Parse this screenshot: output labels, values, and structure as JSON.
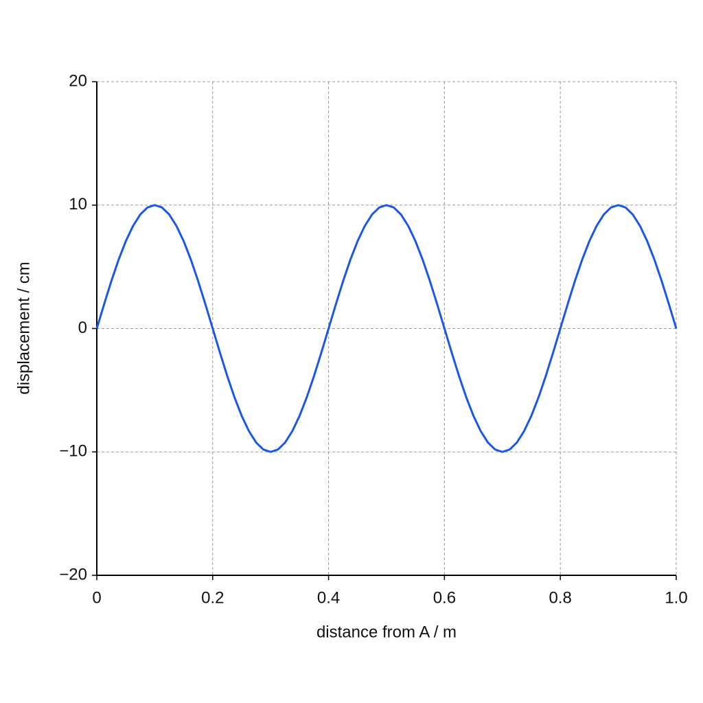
{
  "chart_data": {
    "type": "line",
    "xlabel": "distance from A / m",
    "ylabel": "displacement / cm",
    "x": [
      0,
      0.0125,
      0.025,
      0.0375,
      0.05,
      0.0625,
      0.075,
      0.0875,
      0.1,
      0.1125,
      0.125,
      0.1375,
      0.15,
      0.1625,
      0.175,
      0.1875,
      0.2,
      0.2125,
      0.225,
      0.2375,
      0.25,
      0.2625,
      0.275,
      0.2875,
      0.3,
      0.3125,
      0.325,
      0.3375,
      0.35,
      0.3625,
      0.375,
      0.3875,
      0.4,
      0.4125,
      0.425,
      0.4375,
      0.45,
      0.4625,
      0.475,
      0.4875,
      0.5,
      0.5125,
      0.525,
      0.5375,
      0.55,
      0.5625,
      0.575,
      0.5875,
      0.6,
      0.6125,
      0.625,
      0.6375,
      0.65,
      0.6625,
      0.675,
      0.6875,
      0.7,
      0.7125,
      0.725,
      0.7375,
      0.75,
      0.7625,
      0.775,
      0.7875,
      0.8,
      0.8125,
      0.825,
      0.8375,
      0.85,
      0.8625,
      0.875,
      0.8875,
      0.9,
      0.9125,
      0.925,
      0.9375,
      0.95,
      0.9625,
      0.975,
      0.9875,
      1
    ],
    "series": [
      {
        "color": "#1a56e8",
        "values": [
          0,
          1.95,
          3.83,
          5.56,
          7.07,
          8.31,
          9.24,
          9.81,
          10,
          9.81,
          9.24,
          8.31,
          7.07,
          5.56,
          3.83,
          1.95,
          0,
          -1.95,
          -3.83,
          -5.56,
          -7.07,
          -8.31,
          -9.24,
          -9.81,
          -10,
          -9.81,
          -9.24,
          -8.31,
          -7.07,
          -5.56,
          -3.83,
          -1.95,
          0,
          1.95,
          3.83,
          5.56,
          7.07,
          8.31,
          9.24,
          9.81,
          10,
          9.81,
          9.24,
          8.31,
          7.07,
          5.56,
          3.83,
          1.95,
          0,
          -1.95,
          -3.83,
          -5.56,
          -7.07,
          -8.31,
          -9.24,
          -9.81,
          -10,
          -9.81,
          -9.24,
          -8.31,
          -7.07,
          -5.56,
          -3.83,
          -1.95,
          0,
          1.95,
          3.83,
          5.56,
          7.07,
          8.31,
          9.24,
          9.81,
          10,
          9.81,
          9.24,
          8.31,
          7.07,
          5.56,
          3.83,
          1.95,
          0
        ]
      }
    ],
    "xlim": [
      0,
      1
    ],
    "xticks": [
      0,
      0.2,
      0.4,
      0.6,
      0.8,
      {
        "value": 1,
        "label": "1.0"
      }
    ],
    "ylim": [
      -20,
      20
    ],
    "yticks": [
      {
        "value": -20,
        "label": "−20"
      },
      {
        "value": -10,
        "label": "−10"
      },
      0,
      10,
      20
    ],
    "grid": true
  }
}
